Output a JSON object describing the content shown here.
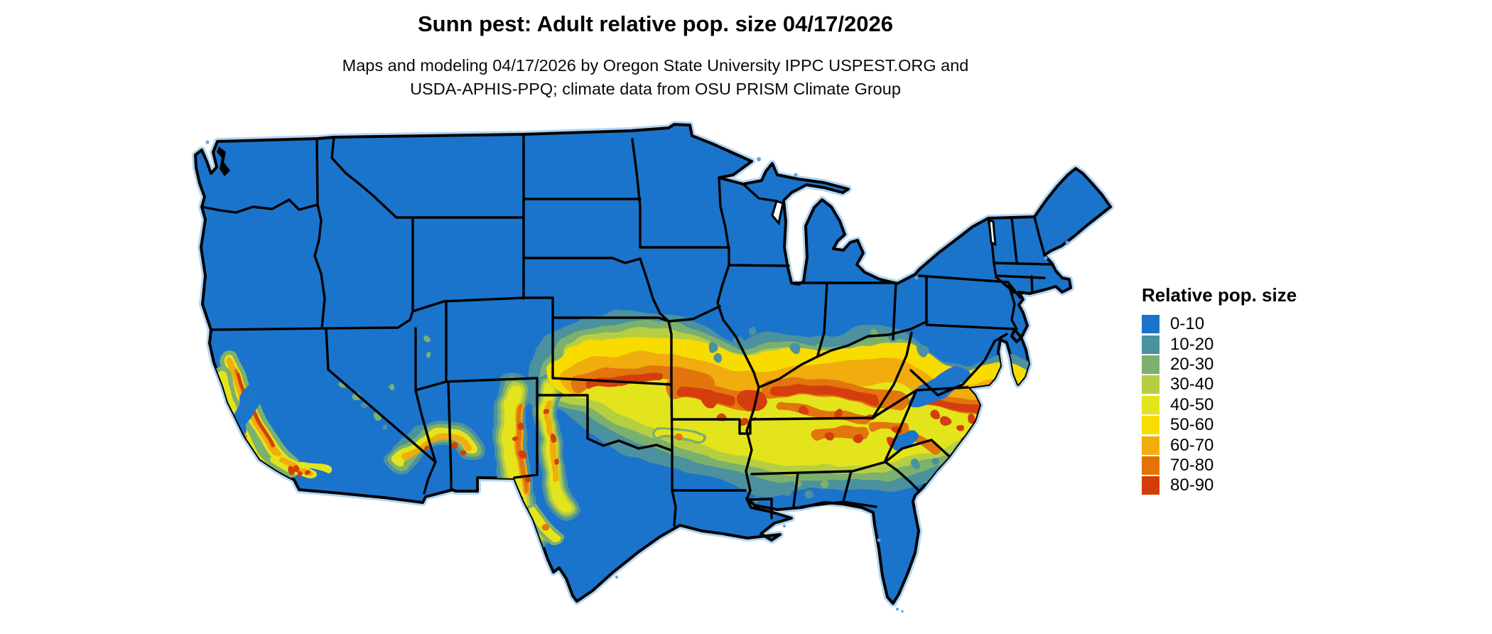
{
  "title": "Sunn pest: Adult relative pop. size 04/17/2026",
  "subtitle": {
    "line1": "Maps and modeling 04/17/2026 by Oregon State University IPPC USPEST.ORG and",
    "line2": "USDA-APHIS-PPQ; climate data from OSU PRISM Climate Group"
  },
  "legend": {
    "title": "Relative pop. size",
    "items": [
      {
        "label": "0-10",
        "color": "#1B74CB"
      },
      {
        "label": "10-20",
        "color": "#4C919E"
      },
      {
        "label": "20-30",
        "color": "#7CB06E"
      },
      {
        "label": "30-40",
        "color": "#B6CE43"
      },
      {
        "label": "40-50",
        "color": "#E4E41C"
      },
      {
        "label": "50-60",
        "color": "#F8DC03"
      },
      {
        "label": "60-70",
        "color": "#F0AD0C"
      },
      {
        "label": "70-80",
        "color": "#E27407"
      },
      {
        "label": "80-90",
        "color": "#D43D08"
      }
    ]
  },
  "map": {
    "background_color": "#FFFFFF",
    "land_base_color": "#1B74CB",
    "border_color": "#000000",
    "water_color": "#FFFFFF"
  }
}
